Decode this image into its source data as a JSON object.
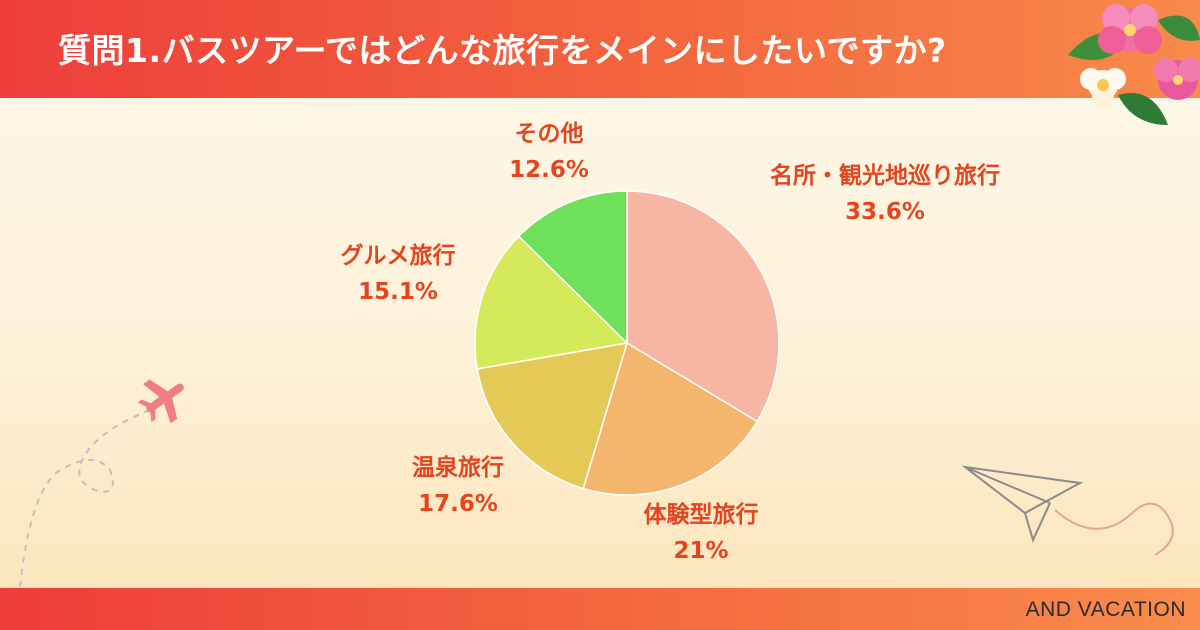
{
  "header": {
    "title": "質問1.バスツアーではどんな旅行をメインにしたいですか?"
  },
  "footer": {
    "brand": "AND VACATION"
  },
  "colors": {
    "header": "#ef4a3c",
    "label_text": "#e2451f",
    "slices": [
      "#f7b5a3",
      "#f4b66e",
      "#e5c957",
      "#d5ea5a",
      "#6ee05a"
    ]
  },
  "decorations": [
    "airplane-icon",
    "paper-plane-icon",
    "hibiscus-flowers-icon"
  ],
  "chart_data": {
    "type": "pie",
    "title": "質問1.バスツアーではどんな旅行をメインにしたいですか?",
    "categories": [
      "名所・観光地巡り旅行",
      "体験型旅行",
      "温泉旅行",
      "グルメ旅行",
      "その他"
    ],
    "values": [
      33.6,
      21,
      17.6,
      15.1,
      12.6
    ],
    "value_labels": [
      "33.6%",
      "21%",
      "17.6%",
      "15.1%",
      "12.6%"
    ],
    "start": "12 o'clock",
    "direction": "clockwise",
    "legend": "none"
  }
}
